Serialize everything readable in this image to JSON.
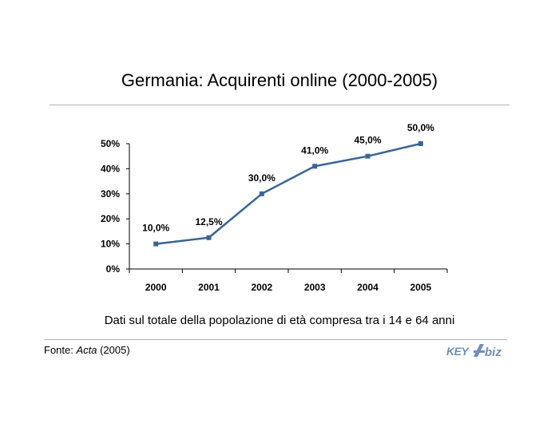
{
  "chart_data": {
    "type": "line",
    "title": "Germania: Acquirenti online (2000-2005)",
    "subtitle": "Dati sul totale della popolazione di età compresa tra i 14 e 64 anni",
    "categories": [
      "2000",
      "2001",
      "2002",
      "2003",
      "2004",
      "2005"
    ],
    "values": [
      10.0,
      12.5,
      30.0,
      41.0,
      45.0,
      50.0
    ],
    "data_labels": [
      "10,0%",
      "12,5%",
      "30,0%",
      "41,0%",
      "45,0%",
      "50,0%"
    ],
    "y_ticks": [
      "0%",
      "10%",
      "20%",
      "30%",
      "40%",
      "50%"
    ],
    "ylim": [
      0,
      50
    ],
    "grid": false,
    "line_color": "#3b6494"
  },
  "source": {
    "prefix": "Fonte: ",
    "name": "Acta",
    "suffix": " (2005)"
  },
  "logo": {
    "text_left": "KEY",
    "text_right": "biz",
    "color": "#6f8fb5"
  }
}
